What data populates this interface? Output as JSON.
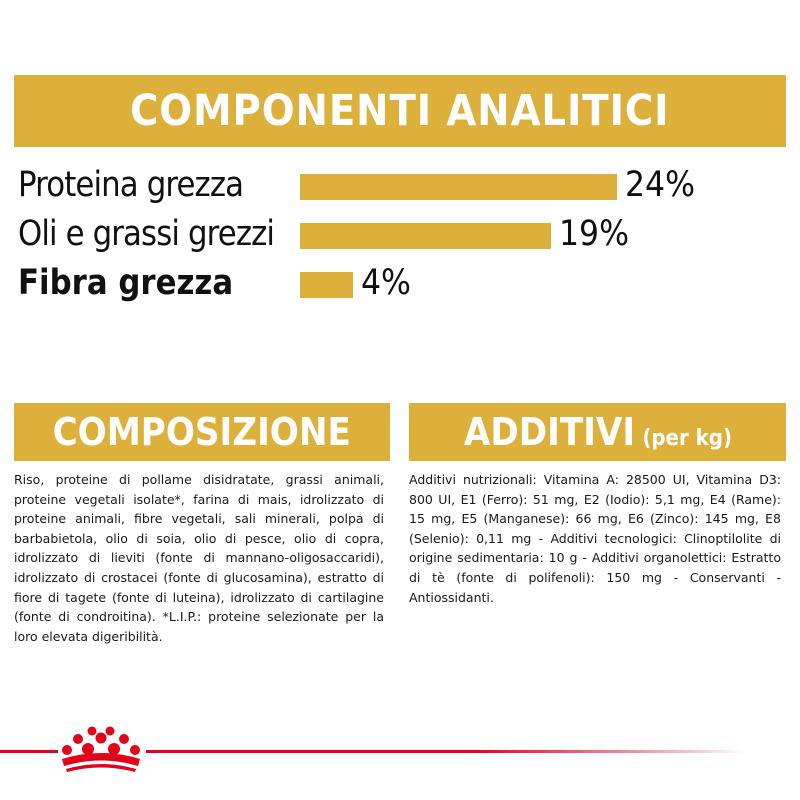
{
  "analytic": {
    "title": "COMPONENTI ANALITICI",
    "items": [
      {
        "label": "Proteina grezza",
        "value": "24%",
        "percent": 24
      },
      {
        "label": "Oli e grassi grezzi",
        "value": "19%",
        "percent": 19
      },
      {
        "label": "Fibra grezza",
        "value": "4%",
        "percent": 4
      }
    ]
  },
  "composizione": {
    "title": "COMPOSIZIONE",
    "text": "Riso, proteine di pollame disidratate, grassi animali, proteine vegetali isolate*, farina di mais, idrolizzato di proteine animali, fibre vegetali, sali minerali, polpa di barbabietola, olio di soia, olio di pesce, olio di copra, idrolizzato di lieviti (fonte di mannano-oligosaccaridi), idrolizzato di crostacei (fonte di glucosamina), estratto di fiore di tagete (fonte di luteina), idrolizzato di cartilagine (fonte di condroitina). *L.I.P.: proteine selezionate per la loro elevata digeribilità."
  },
  "additivi": {
    "title": "ADDITIVI",
    "unit": "(per kg)",
    "text": "Additivi nutrizionali: Vitamina A: 28500 UI, Vitamina D3: 800 UI, E1 (Ferro): 51 mg, E2 (Iodio): 5,1 mg, E4 (Rame): 15 mg, E5 (Manganese): 66 mg, E6 (Zinco): 145 mg, E8 (Selenio): 0,11 mg - Additivi tecnologici: Clinoptilolite di origine sedimentaria: 10 g - Additivi organolettici: Estratto di tè (fonte di polifenoli): 150 mg - Conservanti - Antiossidanti."
  },
  "brand": {
    "logo": "royal-canin-crown-icon"
  },
  "colors": {
    "accent": "#DDB03C",
    "brand_red": "#E2051A",
    "text": "#111111"
  }
}
